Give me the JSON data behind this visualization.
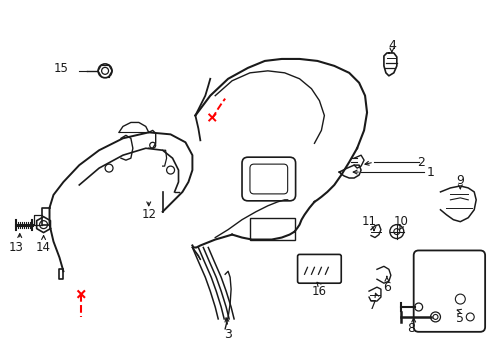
{
  "bg_color": "#ffffff",
  "lc": "#1a1a1a",
  "rc": "#ff0000",
  "figsize": [
    4.89,
    3.6
  ],
  "dpi": 100
}
